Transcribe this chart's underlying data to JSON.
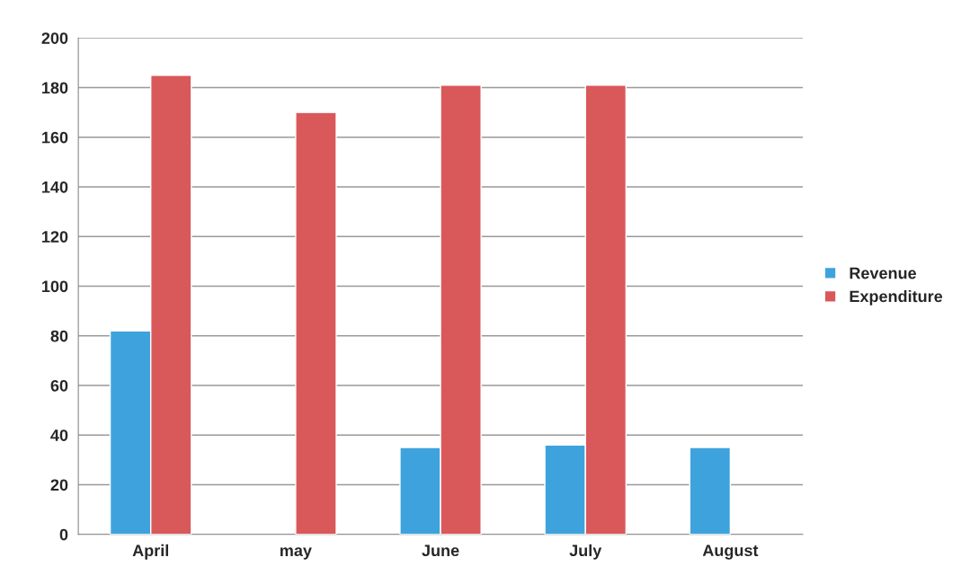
{
  "chart_data": {
    "type": "bar",
    "categories": [
      "April",
      "may",
      "June",
      "July",
      "August"
    ],
    "series": [
      {
        "name": "Revenue",
        "color": "#3ea3dc",
        "values": [
          82,
          null,
          35,
          36,
          35
        ]
      },
      {
        "name": "Expenditure",
        "color": "#d9585a",
        "values": [
          185,
          170,
          181,
          181,
          null
        ]
      }
    ],
    "ylim": [
      0,
      200
    ],
    "yticks": [
      0,
      20,
      40,
      60,
      80,
      100,
      120,
      140,
      160,
      180,
      200
    ],
    "grid": "y",
    "legend": "right"
  }
}
